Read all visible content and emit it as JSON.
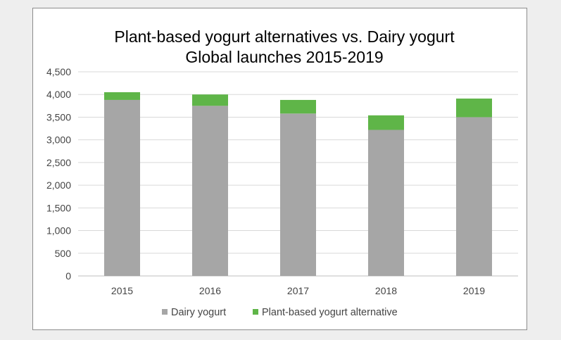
{
  "chart_data": {
    "type": "bar",
    "stacked": true,
    "title": "Plant-based yogurt alternatives vs. Dairy yogurt",
    "subtitle": "Global launches 2015-2019",
    "categories": [
      "2015",
      "2016",
      "2017",
      "2018",
      "2019"
    ],
    "series": [
      {
        "name": "Dairy yogurt",
        "color": "#a6a6a6",
        "values": [
          3880,
          3750,
          3580,
          3220,
          3500
        ]
      },
      {
        "name": "Plant-based yogurt alternative",
        "color": "#5fb548",
        "values": [
          170,
          250,
          300,
          320,
          410
        ]
      }
    ],
    "ylim": [
      0,
      4500
    ],
    "yticks": [
      0,
      500,
      1000,
      1500,
      2000,
      2500,
      3000,
      3500,
      4000,
      4500
    ],
    "ytick_labels": [
      "0",
      "500",
      "1,000",
      "1,500",
      "2,000",
      "2,500",
      "3,000",
      "3,500",
      "4,000",
      "4,500"
    ],
    "grid": true,
    "legend_position": "bottom"
  }
}
